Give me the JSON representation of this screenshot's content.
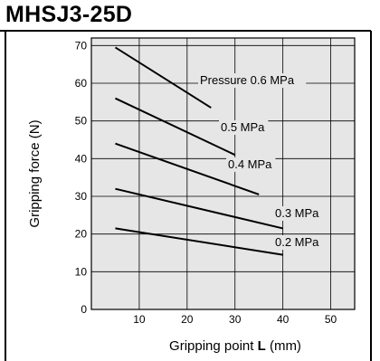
{
  "title": "MHSJ3-25D",
  "chart_data": {
    "type": "line",
    "title": "MHSJ3-25D",
    "xlabel_prefix": "Gripping point ",
    "xlabel_symbol": "L",
    "xlabel_unit": " (mm)",
    "ylabel": "Gripping force  (N)",
    "xlim": [
      0,
      55
    ],
    "ylim": [
      0,
      72
    ],
    "x_ticks": [
      "10",
      "20",
      "30",
      "40",
      "50"
    ],
    "y_ticks": [
      "0",
      "10",
      "20",
      "30",
      "40",
      "50",
      "60",
      "70"
    ],
    "grid": true,
    "series": [
      {
        "name": "Pressure 0.6 MPa",
        "x": [
          5,
          25
        ],
        "y": [
          69.5,
          53.5
        ]
      },
      {
        "name": "0.5 MPa",
        "x": [
          5,
          30
        ],
        "y": [
          56,
          41
        ]
      },
      {
        "name": "0.4 MPa",
        "x": [
          5,
          35
        ],
        "y": [
          44,
          30.5
        ]
      },
      {
        "name": "0.3 MPa",
        "x": [
          5,
          40
        ],
        "y": [
          32,
          21.5
        ]
      },
      {
        "name": "0.2 MPa",
        "x": [
          5,
          40
        ],
        "y": [
          21.5,
          14.5
        ]
      }
    ]
  }
}
